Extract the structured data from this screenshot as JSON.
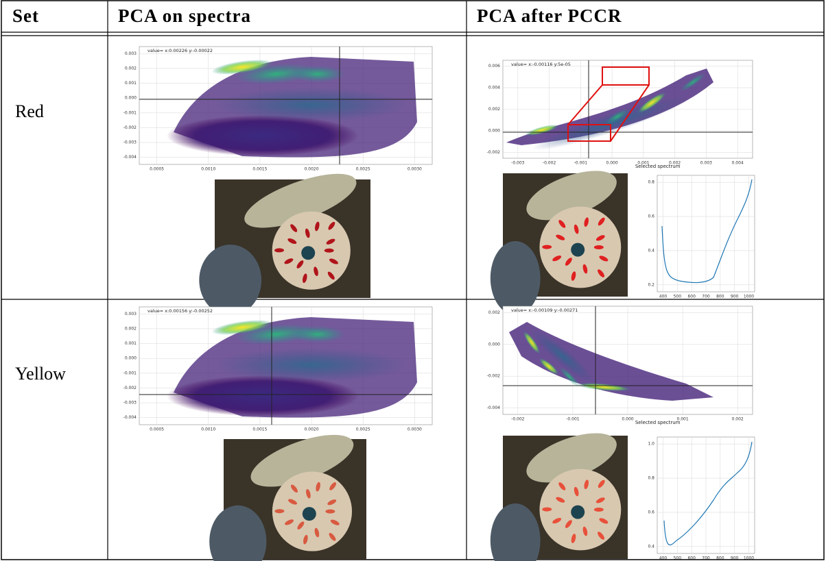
{
  "table": {
    "header": [
      "Set",
      "PCA on spectra",
      "PCA after PCCR"
    ],
    "rows": [
      {
        "label": "Red",
        "pca_plot": {
          "value_text": "value= x:0.00226 y:-0.00022",
          "xticks": [
            "0.0005",
            "0.0010",
            "0.0015",
            "0.0020",
            "0.0025",
            "0.0030"
          ],
          "yticks": [
            "0.003",
            "0.002",
            "0.001",
            "0.000",
            "-0.001",
            "-0.002",
            "-0.003",
            "-0.004"
          ]
        },
        "pccr_plot": {
          "value_text": "value= x:-0.00116 y:5e-05",
          "xticks": [
            "-0.003",
            "-0.002",
            "-0.001",
            "0.000",
            "0.001",
            "0.002",
            "0.003",
            "0.004"
          ],
          "yticks": [
            "0.006",
            "0.004",
            "0.002",
            "0.000",
            "-0.002"
          ],
          "xlabel": "Selected spectrum"
        },
        "spectrum_plot": {
          "xticks": [
            "400",
            "500",
            "600",
            "700",
            "800",
            "900",
            "1000"
          ],
          "yticks": [
            "0.8",
            "0.6",
            "0.4",
            "0.2"
          ]
        }
      },
      {
        "label": "Yellow",
        "pca_plot": {
          "value_text": "value= x:0.00156 y:-0.00252",
          "xticks": [
            "0.0005",
            "0.0010",
            "0.0015",
            "0.0020",
            "0.0025",
            "0.0030"
          ],
          "yticks": [
            "0.003",
            "0.002",
            "0.001",
            "0.000",
            "-0.001",
            "-0.002",
            "-0.003",
            "-0.004"
          ]
        },
        "pccr_plot": {
          "value_text": "value= x:-0.00109 y:-0.00271",
          "xticks": [
            "-0.002",
            "-0.001",
            "0.000",
            "0.001",
            "0.002"
          ],
          "yticks": [
            "0.002",
            "0.000",
            "-0.002",
            "-0.004"
          ],
          "xlabel": "Selected spectrum"
        },
        "spectrum_plot": {
          "xticks": [
            "400",
            "500",
            "600",
            "700",
            "800",
            "900",
            "1000"
          ],
          "yticks": [
            "1.0",
            "0.8",
            "0.6",
            "0.4"
          ]
        }
      }
    ]
  }
}
